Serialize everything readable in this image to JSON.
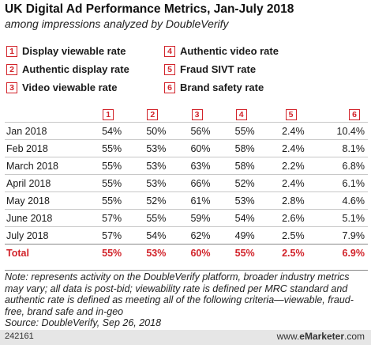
{
  "header": {
    "title": "UK Digital Ad Performance Metrics, Jan-July 2018",
    "subtitle": "among impressions analyzed by DoubleVerify"
  },
  "legend": [
    {
      "num": "1",
      "label": "Display viewable rate"
    },
    {
      "num": "2",
      "label": "Authentic display rate"
    },
    {
      "num": "3",
      "label": "Video viewable rate"
    },
    {
      "num": "4",
      "label": "Authentic video rate"
    },
    {
      "num": "5",
      "label": "Fraud SIVT rate"
    },
    {
      "num": "6",
      "label": "Brand safety rate"
    }
  ],
  "chart_data": {
    "type": "table",
    "title": "UK Digital Ad Performance Metrics, Jan-July 2018",
    "subtitle": "among impressions analyzed by DoubleVerify",
    "columns": [
      "1",
      "2",
      "3",
      "4",
      "5",
      "6"
    ],
    "rows": [
      {
        "label": "Jan 2018",
        "values": [
          "54%",
          "50%",
          "56%",
          "55%",
          "2.4%",
          "10.4%"
        ]
      },
      {
        "label": "Feb 2018",
        "values": [
          "55%",
          "53%",
          "60%",
          "58%",
          "2.4%",
          "8.1%"
        ]
      },
      {
        "label": "March 2018",
        "values": [
          "55%",
          "53%",
          "63%",
          "58%",
          "2.2%",
          "6.8%"
        ]
      },
      {
        "label": "April 2018",
        "values": [
          "55%",
          "53%",
          "66%",
          "52%",
          "2.4%",
          "6.1%"
        ]
      },
      {
        "label": "May 2018",
        "values": [
          "55%",
          "52%",
          "61%",
          "53%",
          "2.8%",
          "4.6%"
        ]
      },
      {
        "label": "June 2018",
        "values": [
          "57%",
          "55%",
          "59%",
          "54%",
          "2.6%",
          "5.1%"
        ]
      },
      {
        "label": "July 2018",
        "values": [
          "57%",
          "54%",
          "62%",
          "49%",
          "2.5%",
          "7.9%"
        ]
      },
      {
        "label": "Total",
        "values": [
          "55%",
          "53%",
          "60%",
          "55%",
          "2.5%",
          "6.9%"
        ],
        "total": true
      }
    ]
  },
  "note": "Note: represents activity on the DoubleVerify platform, broader industry metrics may vary; all data is post-bid; viewability rate is defined per MRC standard and authentic rate is defined as meeting all of the following criteria—viewable, fraud-free, brand safe and in-geo",
  "source": "Source: DoubleVerify, Sep 26, 2018",
  "footer": {
    "id": "242161",
    "brand_url": "www.",
    "brand_name": "eMarketer",
    "brand_tld": ".com"
  },
  "colors": {
    "accent": "#d2232a",
    "footer_bg": "#e6e6e6"
  }
}
